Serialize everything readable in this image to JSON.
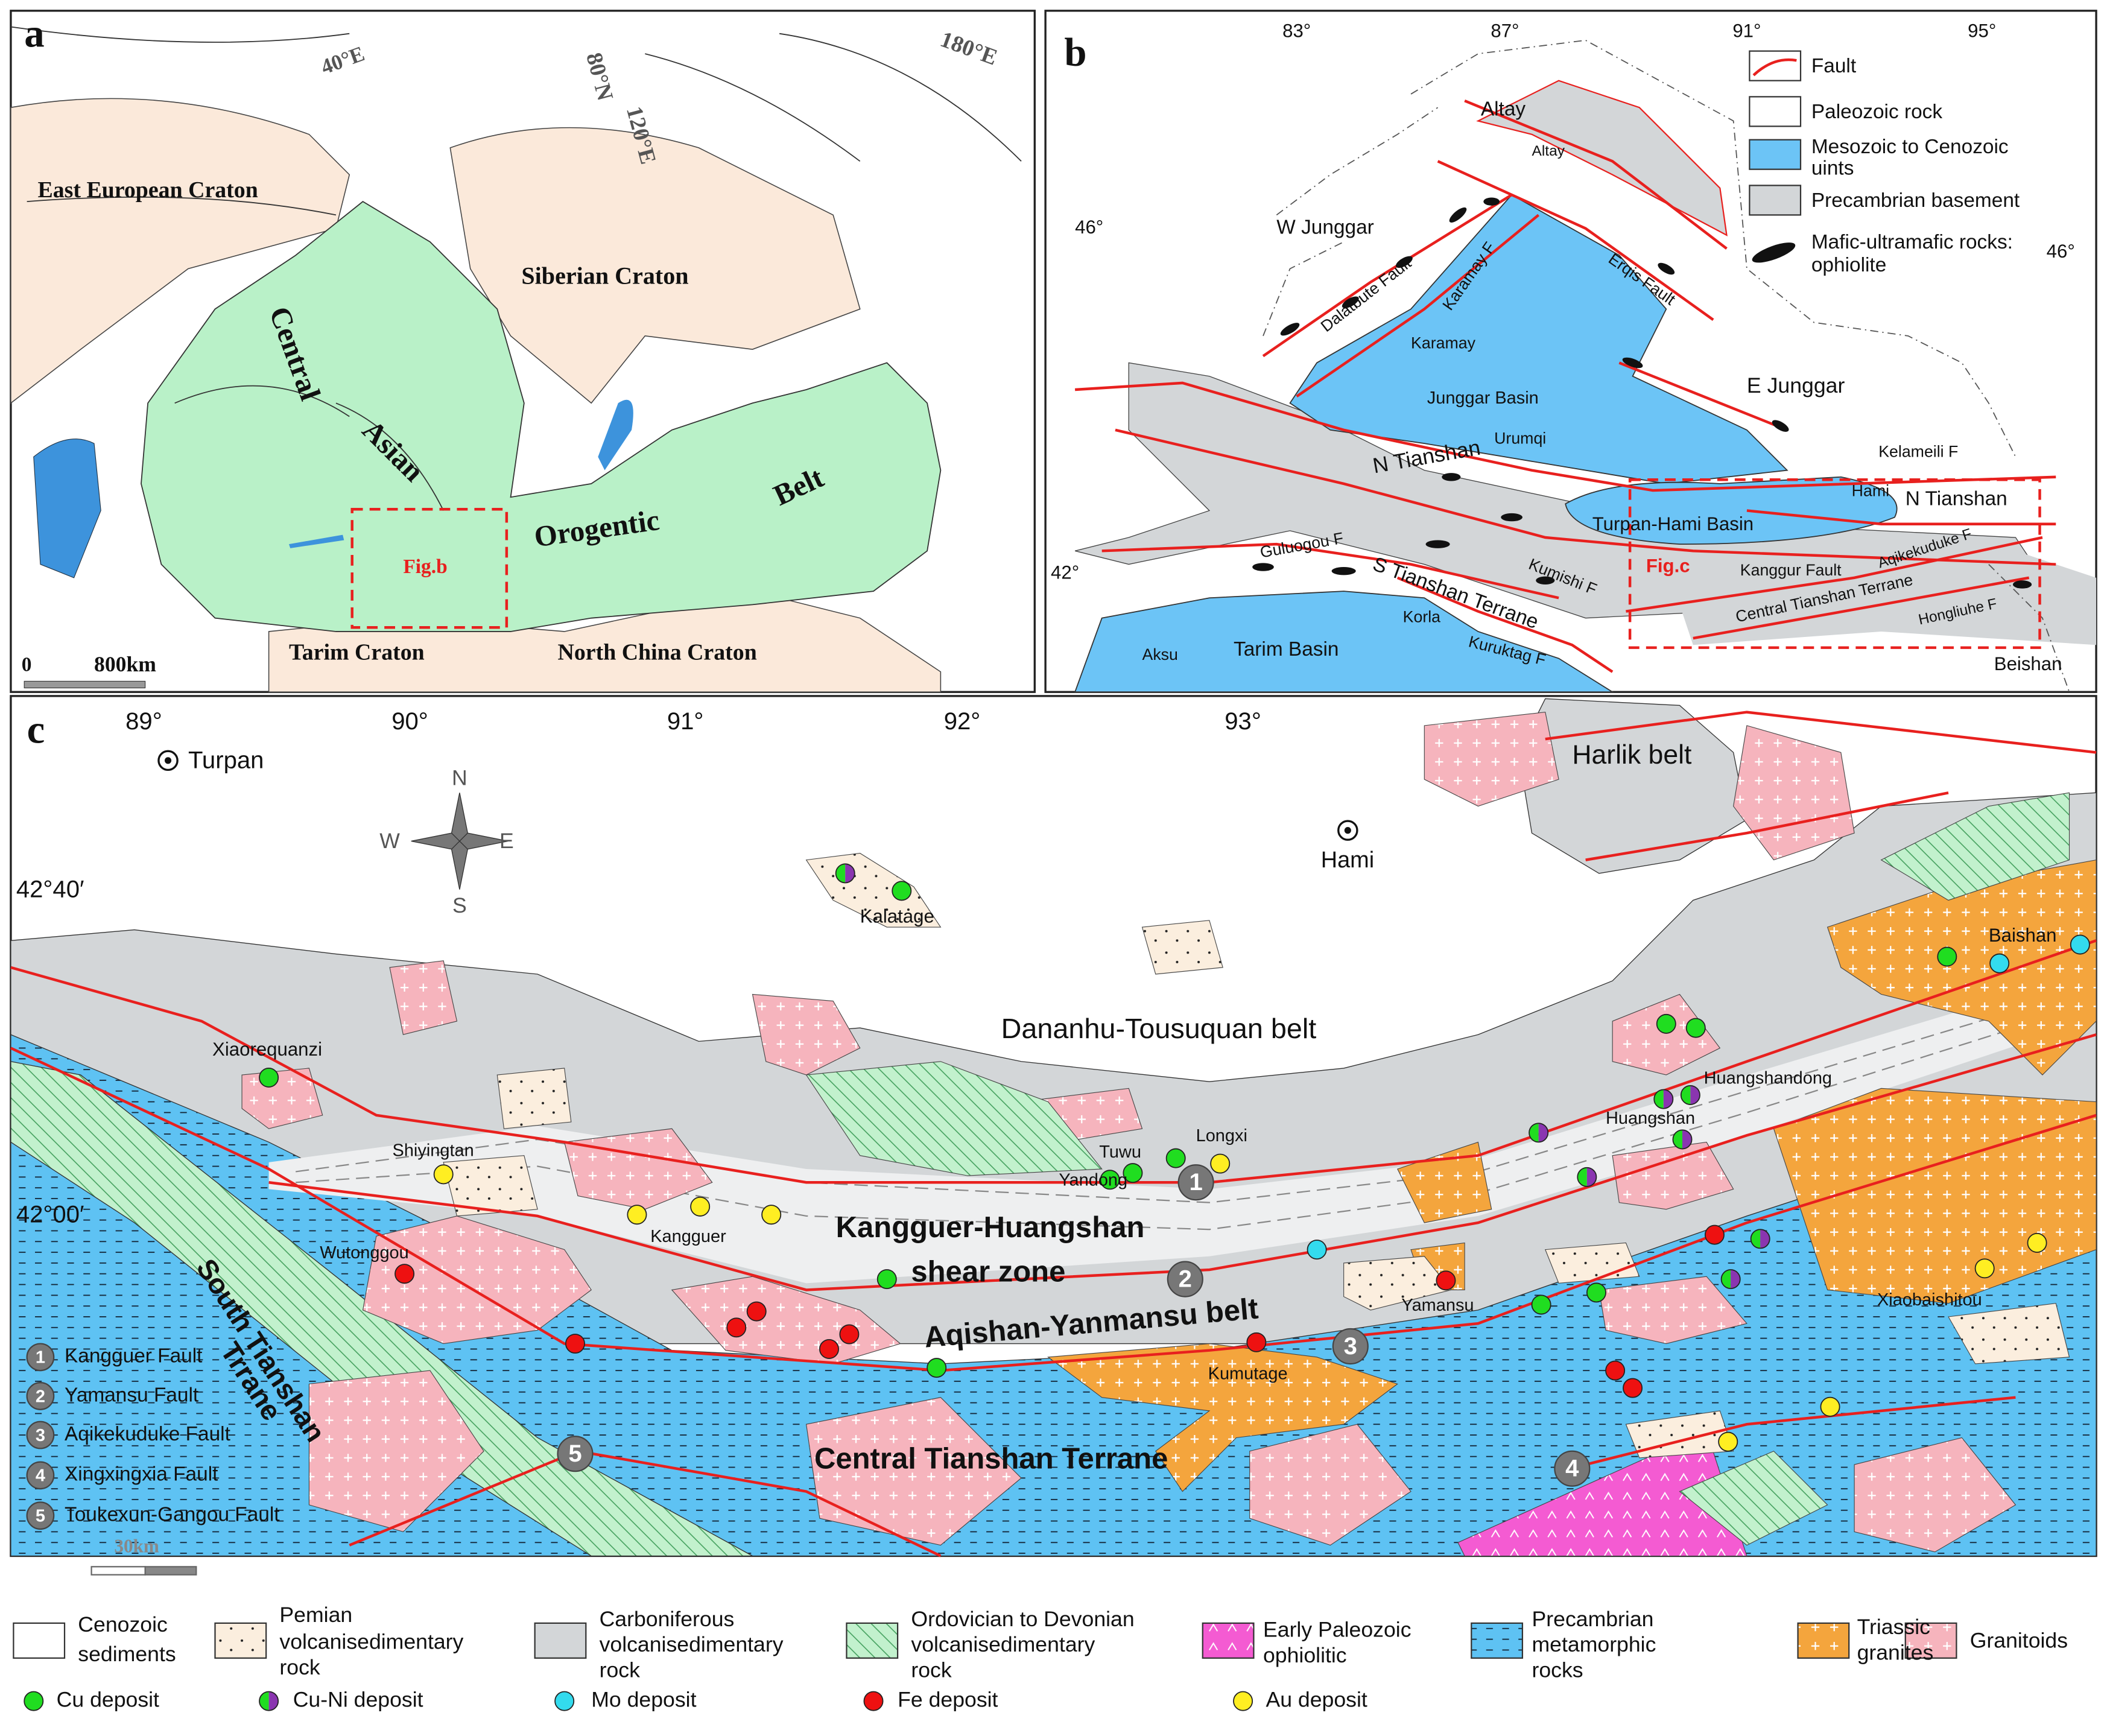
{
  "panel_a": {
    "label": "a",
    "graticule": [
      "40°E",
      "80°N",
      "120°E",
      "180°E"
    ],
    "regions": [
      "East European Craton",
      "Siberian Craton",
      "Central",
      "Asian",
      "Orogentic",
      "Belt",
      "Tarim Craton",
      "North China Craton"
    ],
    "inset": "Fig.b",
    "scale": [
      "0",
      "800km"
    ]
  },
  "panel_b": {
    "label": "b",
    "lon_ticks": [
      "83°",
      "87°",
      "91°",
      "95°"
    ],
    "lat_ticks": [
      "46°",
      "42°",
      "46°"
    ],
    "places": [
      "Altay",
      "Altay",
      "W Junggar",
      "Dalatbute Fault",
      "Karamay F",
      "Karamay",
      "Erqis Fault",
      "Junggar Basin",
      "E  Junggar",
      "Urumqi",
      "Kelameili F",
      "N Tianshan",
      "Hami",
      "N Tianshan",
      "Turpan-Hami  Basin",
      "Guluogou F",
      "S Tianshan Terrane",
      "Kumishi F",
      "Kanggur Fault",
      "Aqikekuduke F",
      "Central  Tianshan Terrane",
      "Hongliuhe F",
      "Korla",
      "Kuruktag F",
      "Tarim Basin",
      "Aksu",
      "Beishan"
    ],
    "inset": "Fig.c",
    "legend": [
      [
        "Fault"
      ],
      [
        "Paleozoic rock"
      ],
      [
        "Mesozoic to Cenozoic",
        "uints"
      ],
      [
        "Precambrian basement"
      ],
      [
        "Mafic-ultramafic rocks:",
        "ophiolite"
      ]
    ]
  },
  "panel_c": {
    "label": "c",
    "lon_ticks": [
      "89°",
      "90°",
      "91°",
      "92°",
      "93°"
    ],
    "lat_ticks": [
      "42°40′",
      "42°00′"
    ],
    "compass": [
      "N",
      "S",
      "W",
      "E"
    ],
    "places": [
      "Turpan",
      "Hami",
      "Harlik belt",
      "Kalatage",
      "Baishan",
      "Dananhu-Tousuquan belt",
      "Xiaorequanzi",
      "Huangshandong",
      "Huangshan",
      "Longxi",
      "Tuwu",
      "Yandong",
      "Shiyingtan",
      "Kangguer",
      "Kangguer-Huangshan",
      "shear zone",
      "Aqishan-Yanmansu belt",
      "Wutonggou",
      "Yamansu",
      "Kumutage",
      "Xiaobaishitou",
      "Central Tianshan Terrane",
      "South Tianshan",
      "Trrane"
    ],
    "faults": [
      {
        "number": "1",
        "name": "Kangguer Fault"
      },
      {
        "number": "2",
        "name": "Yamansu Fault"
      },
      {
        "number": "3",
        "name": "Aqikekuduke Fault"
      },
      {
        "number": "4",
        "name": "Xingxingxia Fault"
      },
      {
        "number": "5",
        "name": "Toukexun-Gangou Fault"
      }
    ],
    "scale": "30km"
  },
  "legend": {
    "units": [
      [
        "Cenozoic",
        "sediments"
      ],
      [
        "Pemian",
        "volcanisedimentary",
        "rock"
      ],
      [
        "Carboniferous",
        "volcanisedimentary",
        "rock"
      ],
      [
        "Ordovician to Devonian",
        "volcanisedimentary",
        "rock"
      ],
      [
        "Early Paleozoic",
        "ophiolitic"
      ],
      [
        "Precambrian",
        "metamorphic",
        "rocks"
      ],
      [
        "Triassic",
        "granites"
      ],
      [
        "Granitoids"
      ]
    ],
    "deposits": [
      "Cu deposit",
      "Cu-Ni deposit",
      "Mo deposit",
      "Fe deposit",
      "Au deposit"
    ]
  }
}
